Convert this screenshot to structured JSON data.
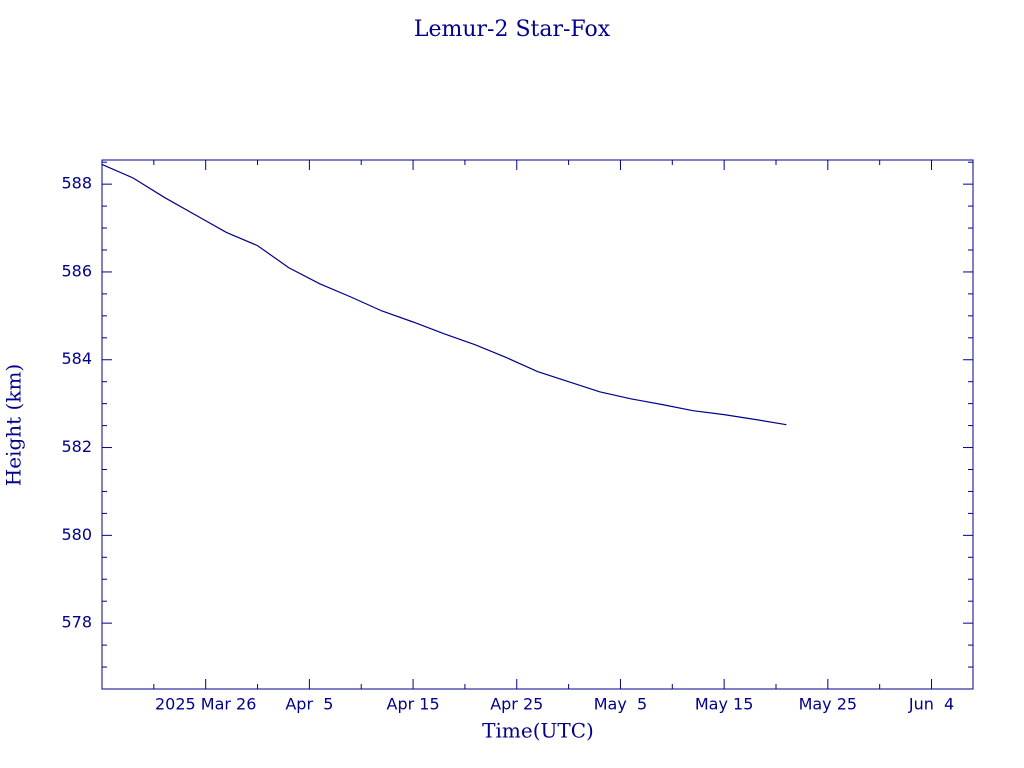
{
  "chart_data": {
    "type": "line",
    "title": "Lemur-2 Star-Fox",
    "x_label": "Time(UTC)",
    "y_label": "Height (km)",
    "x": [
      "2025-03-16",
      "2025-03-19",
      "2025-03-22",
      "2025-03-25",
      "2025-03-28",
      "2025-03-31",
      "2025-04-03",
      "2025-04-06",
      "2025-04-09",
      "2025-04-12",
      "2025-04-15",
      "2025-04-18",
      "2025-04-21",
      "2025-04-24",
      "2025-04-27",
      "2025-04-30",
      "2025-05-03",
      "2025-05-06",
      "2025-05-09",
      "2025-05-12",
      "2025-05-15",
      "2025-05-18",
      "2025-05-21"
    ],
    "series": [
      {
        "name": "Height",
        "color": "#00008b",
        "values": [
          588.45,
          588.14,
          587.7,
          587.3,
          586.9,
          586.6,
          586.1,
          585.73,
          585.43,
          585.11,
          584.86,
          584.59,
          584.34,
          584.05,
          583.73,
          583.5,
          583.27,
          583.11,
          582.98,
          582.84,
          582.75,
          582.64,
          582.52
        ]
      }
    ],
    "xlim": [
      "2025-03-16",
      "2025-06-08"
    ],
    "xticks": [
      {
        "value": "2025-03-26",
        "label": "2025 Mar 26"
      },
      {
        "value": "2025-04-05",
        "label": "Apr  5"
      },
      {
        "value": "2025-04-15",
        "label": "Apr 15"
      },
      {
        "value": "2025-04-25",
        "label": "Apr 25"
      },
      {
        "value": "2025-05-05",
        "label": "May  5"
      },
      {
        "value": "2025-05-15",
        "label": "May 15"
      },
      {
        "value": "2025-05-25",
        "label": "May 25"
      },
      {
        "value": "2025-06-04",
        "label": "Jun  4"
      }
    ],
    "ylim": [
      576.5,
      588.55
    ],
    "yticks": [
      578,
      580,
      582,
      584,
      586,
      588
    ],
    "grid": false
  }
}
